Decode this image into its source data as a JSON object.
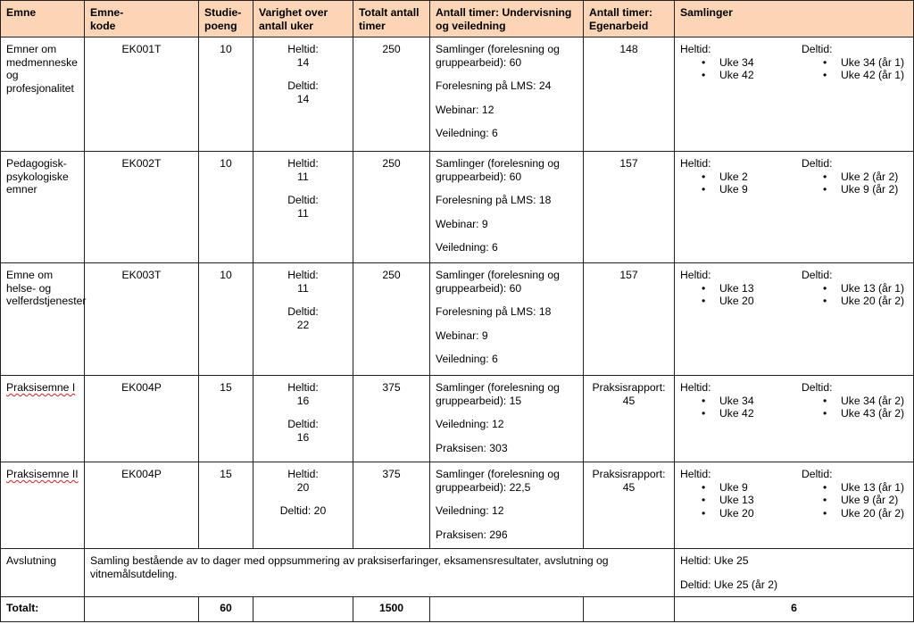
{
  "headers": {
    "emne": "Emne",
    "kode": "Emne-\nkode",
    "poeng": "Studie-\npoeng",
    "varighet": "Varighet over antall uker",
    "totalt": "Totalt antall timer",
    "undervisning": "Antall timer: Undervisning og veiledning",
    "egenarbeid": "Antall timer: Egenarbeid",
    "samlinger": "Samlinger"
  },
  "rows": [
    {
      "emne": "Emner om medmenneske og profesjonalitet",
      "kode": "EK001T",
      "poeng": "10",
      "heltid_label": "Heltid:",
      "heltid_val": "14",
      "deltid_label": "Deltid:",
      "deltid_val": "14",
      "totalt": "250",
      "undervisning": [
        "Samlinger (forelesning og gruppearbeid): 60",
        "Forelesning på LMS: 24",
        "Webinar: 12",
        "Veiledning: 6"
      ],
      "egenarbeid": "148",
      "saml_heltid_label": "Heltid:",
      "saml_heltid": [
        "Uke 34",
        "Uke 42"
      ],
      "saml_deltid_label": "Deltid:",
      "saml_deltid": [
        "Uke 34 (år 1)",
        "Uke 42 (år 1)"
      ]
    },
    {
      "emne": "Pedagogisk-psykologiske emner",
      "kode": "EK002T",
      "poeng": "10",
      "heltid_label": "Heltid:",
      "heltid_val": "11",
      "deltid_label": "Deltid:",
      "deltid_val": "11",
      "totalt": "250",
      "undervisning": [
        "Samlinger (forelesning og gruppearbeid): 60",
        "Forelesning på LMS: 18",
        "Webinar: 9",
        "Veiledning: 6"
      ],
      "egenarbeid": "157",
      "saml_heltid_label": "Heltid:",
      "saml_heltid": [
        "Uke 2",
        "Uke 9"
      ],
      "saml_deltid_label": "Deltid:",
      "saml_deltid": [
        "Uke 2 (år 2)",
        "Uke 9 (år 2)"
      ]
    },
    {
      "emne": "Emne om helse- og velferdstjenester",
      "kode": "EK003T",
      "poeng": "10",
      "heltid_label": "Heltid:",
      "heltid_val": "11",
      "deltid_label": "Deltid:",
      "deltid_val": "22",
      "totalt": "250",
      "undervisning": [
        "Samlinger (forelesning og gruppearbeid): 60",
        "Forelesning på LMS: 18",
        "Webinar: 9",
        "Veiledning: 6"
      ],
      "egenarbeid": "157",
      "saml_heltid_label": "Heltid:",
      "saml_heltid": [
        "Uke 13",
        "Uke 20"
      ],
      "saml_deltid_label": "Deltid:",
      "saml_deltid": [
        "Uke 13 (år 1)",
        "Uke 20 (år 2)"
      ]
    },
    {
      "emne": "Praksisemne I",
      "kode": "EK004P",
      "poeng": "15",
      "heltid_label": "Heltid:",
      "heltid_val": "16",
      "deltid_label": "Deltid:",
      "deltid_val": "16",
      "totalt": "375",
      "undervisning": [
        "Samlinger (forelesning og gruppearbeid): 15",
        "Veiledning: 12",
        "Praksisen: 303"
      ],
      "egenarbeid": "Praksisrapport: 45",
      "saml_heltid_label": "Heltid:",
      "saml_heltid": [
        "Uke 34",
        "Uke 42"
      ],
      "saml_deltid_label": "Deltid:",
      "saml_deltid": [
        "Uke 34 (år 2)",
        "Uke 43 (år 2)"
      ]
    },
    {
      "emne": "Praksisemne II",
      "kode": "EK004P",
      "poeng": "15",
      "heltid_label": "Heltid:",
      "heltid_val": "20",
      "deltid_inline": "Deltid: 20",
      "totalt": "375",
      "undervisning": [
        "Samlinger (forelesning og gruppearbeid): 22,5",
        "Veiledning: 12",
        "Praksisen: 296"
      ],
      "egenarbeid": "Praksisrapport: 45",
      "saml_heltid_label": "Heltid:",
      "saml_heltid": [
        "Uke 9",
        "Uke 13",
        "Uke 20"
      ],
      "saml_deltid_label": "Deltid:",
      "saml_deltid": [
        "Uke 13 (år 1)",
        "Uke 9 (år 2)",
        "Uke 20 (år 2)"
      ]
    }
  ],
  "avslutning": {
    "emne": "Avslutning",
    "beskrivelse": "Samling bestående av to dager med oppsummering av praksiserfaringer, eksamensresultater, avslutning og vitnemålsutdeling.",
    "heltid": "Heltid: Uke 25",
    "deltid": "Deltid: Uke 25 (år 2)"
  },
  "totalt": {
    "label": "Totalt:",
    "poeng": "60",
    "timer": "1500",
    "samlinger": "6"
  },
  "colors": {
    "header_bg": "#fbd5b5",
    "border": "#222222",
    "spellcheck": "#d21f1f"
  }
}
